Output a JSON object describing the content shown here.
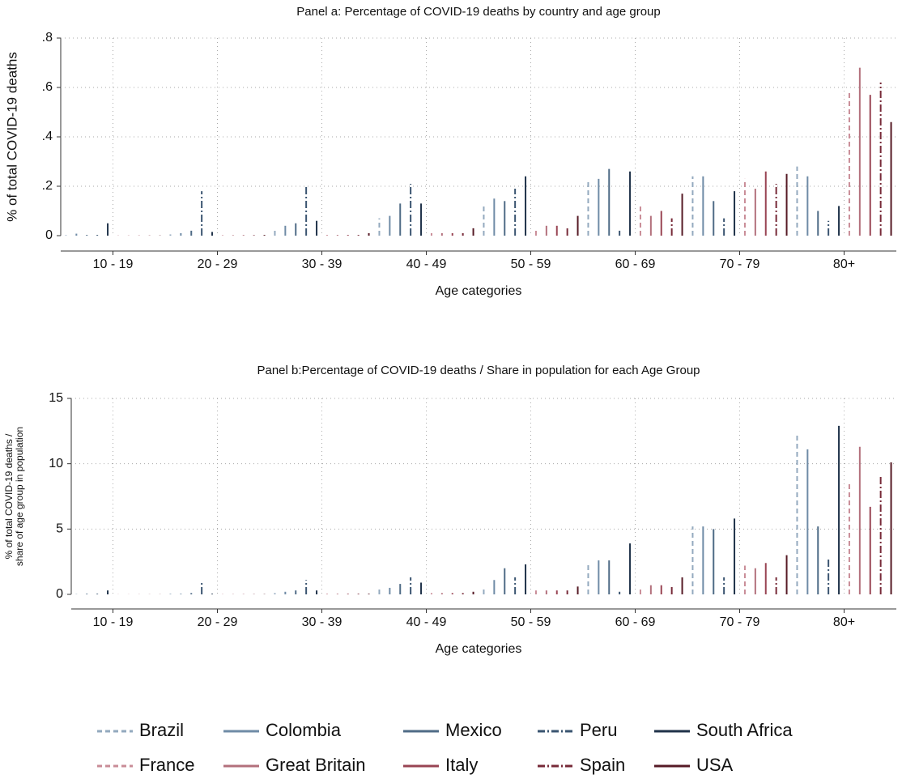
{
  "chart_data": [
    {
      "type": "bar",
      "title": "Panel a: Percentage of COVID-19 deaths by country and age group",
      "x_label": "Age categories",
      "y_label": [
        "% of total COVID-19 deaths"
      ],
      "categories": [
        "10 - 19",
        "20 - 29",
        "30 - 39",
        "40 - 49",
        "50 - 59",
        "60 - 69",
        "70 - 79",
        "80+"
      ],
      "ylim": [
        0,
        0.8
      ],
      "yticks": [
        {
          "value": 0,
          "label": "0"
        },
        {
          "value": 0.2,
          "label": ".2"
        },
        {
          "value": 0.4,
          "label": ".4"
        },
        {
          "value": 0.6,
          "label": ".6"
        },
        {
          "value": 0.8,
          "label": ".8"
        }
      ],
      "grid": true,
      "series": [
        {
          "name": "Brazil",
          "color": "#93a9be",
          "style": "dash",
          "values": [
            0.002,
            0.005,
            0.03,
            0.07,
            0.13,
            0.22,
            0.24,
            0.28
          ]
        },
        {
          "name": "Colombia",
          "color": "#6f8ba6",
          "style": "solid",
          "values": [
            0.008,
            0.01,
            0.04,
            0.08,
            0.15,
            0.23,
            0.24,
            0.24
          ]
        },
        {
          "name": "Mexico",
          "color": "#4f6b86",
          "style": "solid",
          "values": [
            0.003,
            0.02,
            0.05,
            0.13,
            0.14,
            0.27,
            0.14,
            0.1
          ]
        },
        {
          "name": "Peru",
          "color": "#3a5470",
          "style": "dashdot",
          "values": [
            0.003,
            0.18,
            0.2,
            0.21,
            0.19,
            0.02,
            0.07,
            0.06
          ]
        },
        {
          "name": "South Africa",
          "color": "#1f3249",
          "style": "solid",
          "values": [
            0.05,
            0.015,
            0.06,
            0.13,
            0.24,
            0.26,
            0.18,
            0.12
          ]
        },
        {
          "name": "France",
          "color": "#c98c97",
          "style": "dash",
          "values": [
            0.001,
            0.002,
            0.003,
            0.01,
            0.03,
            0.12,
            0.23,
            0.59
          ]
        },
        {
          "name": "Great Britain",
          "color": "#b3707c",
          "style": "solid",
          "values": [
            0.001,
            0.002,
            0.003,
            0.01,
            0.04,
            0.08,
            0.19,
            0.68
          ]
        },
        {
          "name": "Italy",
          "color": "#984453",
          "style": "solid",
          "values": [
            0.001,
            0.002,
            0.003,
            0.01,
            0.04,
            0.1,
            0.26,
            0.57
          ]
        },
        {
          "name": "Spain",
          "color": "#772a38",
          "style": "dashdot",
          "values": [
            0.001,
            0.002,
            0.003,
            0.01,
            0.03,
            0.07,
            0.21,
            0.62
          ]
        },
        {
          "name": "USA",
          "color": "#561a25",
          "style": "solid",
          "values": [
            0.001,
            0.003,
            0.01,
            0.03,
            0.08,
            0.17,
            0.25,
            0.46
          ]
        }
      ]
    },
    {
      "type": "bar",
      "title": "Panel b:Percentage of COVID-19 deaths / Share in population for each Age Group",
      "x_label": "Age categories",
      "y_label": [
        "% of total COVID-19 deaths /",
        "share of age group in population"
      ],
      "categories": [
        "10 - 19",
        "20 - 29",
        "30 - 39",
        "40 - 49",
        "50 - 59",
        "60 - 69",
        "70 - 79",
        "80+"
      ],
      "ylim": [
        0,
        15
      ],
      "yticks": [
        0,
        5,
        10,
        15
      ],
      "grid": true,
      "series": [
        {
          "name": "Brazil",
          "color": "#93a9be",
          "style": "dash",
          "values": [
            0.02,
            0.05,
            0.1,
            0.4,
            0.5,
            2.4,
            5.2,
            12.4
          ]
        },
        {
          "name": "Colombia",
          "color": "#6f8ba6",
          "style": "solid",
          "values": [
            0.02,
            0.05,
            0.2,
            0.5,
            1.1,
            2.6,
            5.2,
            11.1
          ]
        },
        {
          "name": "Mexico",
          "color": "#4f6b86",
          "style": "solid",
          "values": [
            0.05,
            0.1,
            0.3,
            0.8,
            2.0,
            2.6,
            5.0,
            5.2
          ]
        },
        {
          "name": "Peru",
          "color": "#3a5470",
          "style": "dashdot",
          "values": [
            0.05,
            0.9,
            1.1,
            1.3,
            1.3,
            0.2,
            1.3,
            2.8
          ]
        },
        {
          "name": "South Africa",
          "color": "#1f3249",
          "style": "solid",
          "values": [
            0.3,
            0.05,
            0.3,
            0.9,
            2.3,
            3.9,
            5.8,
            12.9
          ]
        },
        {
          "name": "France",
          "color": "#c98c97",
          "style": "dash",
          "values": [
            0.01,
            0.02,
            0.05,
            0.1,
            0.3,
            0.6,
            2.2,
            8.5
          ]
        },
        {
          "name": "Great Britain",
          "color": "#b3707c",
          "style": "solid",
          "values": [
            0.01,
            0.02,
            0.05,
            0.1,
            0.3,
            0.7,
            2.0,
            11.3
          ]
        },
        {
          "name": "Italy",
          "color": "#984453",
          "style": "solid",
          "values": [
            0.01,
            0.02,
            0.05,
            0.1,
            0.3,
            0.7,
            2.4,
            6.7
          ]
        },
        {
          "name": "Spain",
          "color": "#772a38",
          "style": "dashdot",
          "values": [
            0.01,
            0.02,
            0.05,
            0.1,
            0.3,
            0.7,
            1.3,
            9.0
          ]
        },
        {
          "name": "USA",
          "color": "#561a25",
          "style": "solid",
          "values": [
            0.01,
            0.02,
            0.05,
            0.2,
            0.6,
            1.3,
            3.0,
            10.1
          ]
        }
      ]
    }
  ]
}
